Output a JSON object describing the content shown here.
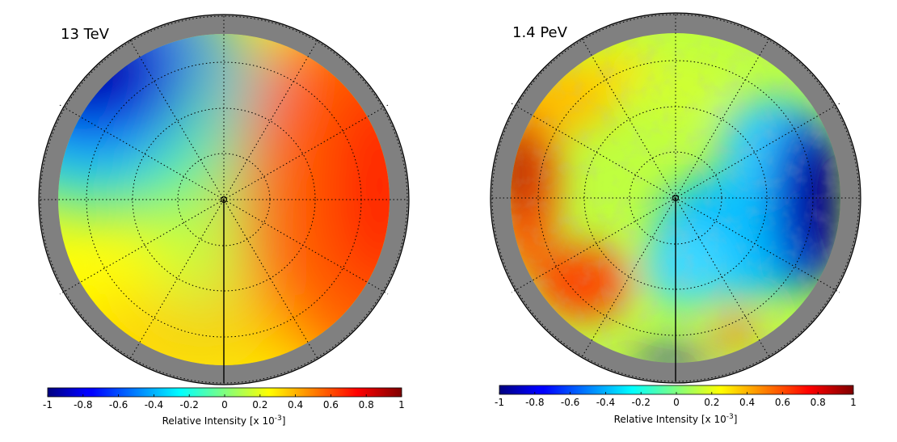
{
  "chart_data": [
    {
      "type": "heatmap",
      "projection": "polar-skymap",
      "title": "13 TeV",
      "colorbar": {
        "min": -1,
        "max": 1,
        "ticks": [
          "-1",
          "-0.8",
          "-0.6",
          "-0.4",
          "-0.2",
          "0",
          "0.2",
          "0.4",
          "0.6",
          "0.8",
          "1"
        ],
        "label_main": "Relative Intensity [x 10",
        "label_exp": "-3",
        "label_end": "]"
      },
      "pattern": "smooth dipole: minimum (-1) upper-left, maximum (+1) right"
    },
    {
      "type": "heatmap",
      "projection": "polar-skymap",
      "title": "1.4 PeV",
      "colorbar": {
        "min": -1,
        "max": 1,
        "ticks": [
          "-1",
          "-0.8",
          "-0.6",
          "-0.4",
          "-0.2",
          "0",
          "0.2",
          "0.4",
          "0.6",
          "0.8",
          "1"
        ],
        "label_main": "Relative Intensity [x 10",
        "label_exp": "-3",
        "label_end": "]"
      },
      "pattern": "noisy dipole: maximum (+1) left, minimum (-1) right"
    }
  ],
  "colors": {
    "mask_ring": "#808080",
    "colormap": "jet"
  }
}
